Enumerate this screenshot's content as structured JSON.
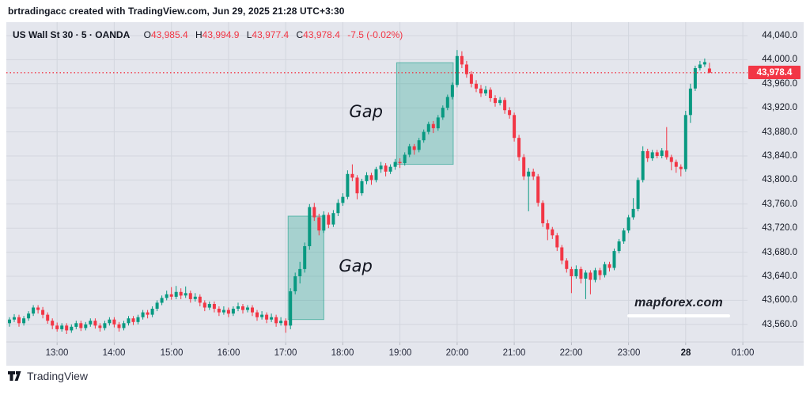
{
  "header": {
    "attribution": "brtradingacc created with TradingView.com, Jun 29, 2025 21:28 UTC+3:30"
  },
  "legend": {
    "title": "US Wall St 30 · 5 · OANDA",
    "o_label": "O",
    "o_value": "43,985.4",
    "h_label": "H",
    "h_value": "43,994.9",
    "l_label": "L",
    "l_value": "43,977.4",
    "c_label": "C",
    "c_value": "43,978.4",
    "change": "-7.5 (-0.02%)"
  },
  "price_axis": {
    "labels": [
      "44,040.0",
      "44,000.0",
      "43,960.0",
      "43,920.0",
      "43,880.0",
      "43,840.0",
      "43,800.0",
      "43,760.0",
      "43,720.0",
      "43,680.0",
      "43,640.0",
      "43,600.0",
      "43,560.0"
    ],
    "prices": [
      44040,
      44000,
      43960,
      43920,
      43880,
      43840,
      43800,
      43760,
      43720,
      43680,
      43640,
      43600,
      43560
    ],
    "last_price_label": "43,978.4",
    "last_price": 43978.4
  },
  "time_axis": {
    "ticks": [
      {
        "label": "13:00",
        "index": 10,
        "bold": false
      },
      {
        "label": "14:00",
        "index": 22,
        "bold": false
      },
      {
        "label": "15:00",
        "index": 34,
        "bold": false
      },
      {
        "label": "16:00",
        "index": 46,
        "bold": false
      },
      {
        "label": "17:00",
        "index": 58,
        "bold": false
      },
      {
        "label": "18:00",
        "index": 70,
        "bold": false
      },
      {
        "label": "19:00",
        "index": 82,
        "bold": false
      },
      {
        "label": "20:00",
        "index": 94,
        "bold": false
      },
      {
        "label": "21:00",
        "index": 106,
        "bold": false
      },
      {
        "label": "22:00",
        "index": 118,
        "bold": false
      },
      {
        "label": "23:00",
        "index": 130,
        "bold": false
      },
      {
        "label": "28",
        "index": 142,
        "bold": true
      },
      {
        "label": "01:00",
        "index": 154,
        "bold": false
      }
    ]
  },
  "annotations": {
    "gap_boxes": [
      {
        "label": "Gap",
        "start_index": 58.5,
        "end_index": 66,
        "price_top": 43740,
        "price_bottom": 43568,
        "label_side": "right"
      },
      {
        "label": "Gap",
        "start_index": 81.3,
        "end_index": 93.2,
        "price_top": 43995,
        "price_bottom": 43826,
        "label_side": "left"
      }
    ],
    "watermark": "mapforex.com"
  },
  "footer": {
    "brand": "TradingView"
  },
  "colors": {
    "up": "#089981",
    "down": "#f23645",
    "pane_bg": "#e4e6ed",
    "grid": "#d3d6de",
    "last_price_line": "#f23645",
    "badge_bg": "#f23645",
    "gap_fill": "rgba(8,153,129,0.28)",
    "gap_border": "rgba(8,153,129,0.55)",
    "text": "#131722"
  },
  "chart_data": {
    "type": "candlestick",
    "title": "US Wall St 30",
    "interval": "5 minute",
    "exchange": "OANDA",
    "start_time": "12:10",
    "interval_min": 5,
    "ylim": [
      43540,
      44060
    ],
    "grid": true,
    "last": {
      "open": 43985.4,
      "high": 43994.9,
      "low": 43977.4,
      "close": 43978.4,
      "change": "-7.5 (-0.02%)"
    },
    "candles": [
      [
        43562,
        43572,
        43556,
        43568
      ],
      [
        43568,
        43577,
        43564,
        43572
      ],
      [
        43572,
        43576,
        43556,
        43562
      ],
      [
        43562,
        43574,
        43558,
        43570
      ],
      [
        43570,
        43582,
        43566,
        43578
      ],
      [
        43578,
        43592,
        43574,
        43588
      ],
      [
        43588,
        43592,
        43578,
        43584
      ],
      [
        43584,
        43589,
        43570,
        43576
      ],
      [
        43576,
        43580,
        43561,
        43566
      ],
      [
        43566,
        43570,
        43552,
        43558
      ],
      [
        43558,
        43563,
        43548,
        43552
      ],
      [
        43552,
        43562,
        43548,
        43558
      ],
      [
        43558,
        43562,
        43544,
        43550
      ],
      [
        43550,
        43560,
        43546,
        43556
      ],
      [
        43556,
        43566,
        43552,
        43562
      ],
      [
        43562,
        43566,
        43549,
        43554
      ],
      [
        43554,
        43564,
        43550,
        43560
      ],
      [
        43560,
        43570,
        43556,
        43566
      ],
      [
        43566,
        43570,
        43553,
        43558
      ],
      [
        43558,
        43562,
        43548,
        43554
      ],
      [
        43554,
        43566,
        43550,
        43562
      ],
      [
        43562,
        43572,
        43558,
        43568
      ],
      [
        43568,
        43572,
        43555,
        43560
      ],
      [
        43560,
        43564,
        43548,
        43554
      ],
      [
        43554,
        43566,
        43550,
        43562
      ],
      [
        43562,
        43574,
        43558,
        43570
      ],
      [
        43570,
        43574,
        43559,
        43564
      ],
      [
        43564,
        43576,
        43560,
        43572
      ],
      [
        43572,
        43584,
        43568,
        43580
      ],
      [
        43580,
        43584,
        43570,
        43576
      ],
      [
        43576,
        43590,
        43572,
        43586
      ],
      [
        43586,
        43600,
        43582,
        43596
      ],
      [
        43596,
        43608,
        43592,
        43604
      ],
      [
        43604,
        43616,
        43600,
        43610
      ],
      [
        43610,
        43622,
        43601,
        43606
      ],
      [
        43606,
        43624,
        43602,
        43614
      ],
      [
        43614,
        43620,
        43602,
        43608
      ],
      [
        43608,
        43623,
        43604,
        43612
      ],
      [
        43612,
        43616,
        43596,
        43602
      ],
      [
        43602,
        43612,
        43598,
        43606
      ],
      [
        43606,
        43610,
        43590,
        43596
      ],
      [
        43596,
        43600,
        43582,
        43588
      ],
      [
        43588,
        43598,
        43584,
        43594
      ],
      [
        43594,
        43598,
        43580,
        43586
      ],
      [
        43586,
        43590,
        43574,
        43580
      ],
      [
        43580,
        43590,
        43576,
        43584
      ],
      [
        43584,
        43588,
        43572,
        43578
      ],
      [
        43578,
        43590,
        43574,
        43586
      ],
      [
        43586,
        43596,
        43582,
        43590
      ],
      [
        43590,
        43594,
        43578,
        43584
      ],
      [
        43584,
        43592,
        43580,
        43588
      ],
      [
        43588,
        43592,
        43574,
        43580
      ],
      [
        43580,
        43584,
        43566,
        43572
      ],
      [
        43572,
        43582,
        43568,
        43576
      ],
      [
        43576,
        43580,
        43562,
        43568
      ],
      [
        43568,
        43578,
        43564,
        43572
      ],
      [
        43572,
        43576,
        43556,
        43562
      ],
      [
        43562,
        43572,
        43558,
        43566
      ],
      [
        43566,
        43570,
        43546,
        43558
      ],
      [
        43558,
        43620,
        43552,
        43615
      ],
      [
        43615,
        43646,
        43610,
        43640
      ],
      [
        43640,
        43664,
        43628,
        43652
      ],
      [
        43652,
        43696,
        43646,
        43690
      ],
      [
        43690,
        43760,
        43684,
        43755
      ],
      [
        43755,
        43762,
        43732,
        43738
      ],
      [
        43738,
        43744,
        43708,
        43716
      ],
      [
        43716,
        43748,
        43712,
        43742
      ],
      [
        43742,
        43746,
        43720,
        43726
      ],
      [
        43726,
        43750,
        43722,
        43745
      ],
      [
        43745,
        43768,
        43740,
        43762
      ],
      [
        43762,
        43778,
        43757,
        43772
      ],
      [
        43772,
        43816,
        43768,
        43810
      ],
      [
        43810,
        43826,
        43798,
        43804
      ],
      [
        43804,
        43808,
        43768,
        43778
      ],
      [
        43778,
        43802,
        43774,
        43798
      ],
      [
        43798,
        43813,
        43793,
        43808
      ],
      [
        43808,
        43812,
        43792,
        43800
      ],
      [
        43800,
        43822,
        43796,
        43818
      ],
      [
        43818,
        43830,
        43812,
        43824
      ],
      [
        43824,
        43828,
        43806,
        43814
      ],
      [
        43814,
        43826,
        43810,
        43822
      ],
      [
        43822,
        43835,
        43817,
        43830
      ],
      [
        43830,
        43836,
        43820,
        43828
      ],
      [
        43828,
        43846,
        43824,
        43842
      ],
      [
        43842,
        43860,
        43838,
        43856
      ],
      [
        43856,
        43860,
        43842,
        43850
      ],
      [
        43850,
        43870,
        43846,
        43866
      ],
      [
        43866,
        43884,
        43862,
        43880
      ],
      [
        43880,
        43897,
        43876,
        43893
      ],
      [
        43893,
        43898,
        43878,
        43886
      ],
      [
        43886,
        43908,
        43882,
        43904
      ],
      [
        43904,
        43924,
        43900,
        43920
      ],
      [
        43920,
        43942,
        43916,
        43938
      ],
      [
        43938,
        43962,
        43934,
        43958
      ],
      [
        43958,
        44016,
        43954,
        44006
      ],
      [
        44006,
        44014,
        43986,
        43992
      ],
      [
        43992,
        43998,
        43970,
        43976
      ],
      [
        43976,
        43981,
        43954,
        43960
      ],
      [
        43960,
        43966,
        43946,
        43952
      ],
      [
        43952,
        43958,
        43938,
        43944
      ],
      [
        43944,
        43956,
        43940,
        43950
      ],
      [
        43950,
        43954,
        43930,
        43936
      ],
      [
        43936,
        43941,
        43922,
        43928
      ],
      [
        43928,
        43938,
        43924,
        43933
      ],
      [
        43933,
        43937,
        43910,
        43916
      ],
      [
        43916,
        43921,
        43902,
        43908
      ],
      [
        43908,
        43912,
        43864,
        43870
      ],
      [
        43870,
        43875,
        43832,
        43838
      ],
      [
        43838,
        43843,
        43800,
        43806
      ],
      [
        43806,
        43820,
        43748,
        43814
      ],
      [
        43814,
        43819,
        43800,
        43806
      ],
      [
        43806,
        43810,
        43756,
        43762
      ],
      [
        43762,
        43766,
        43722,
        43728
      ],
      [
        43728,
        43734,
        43700,
        43718
      ],
      [
        43718,
        43722,
        43702,
        43708
      ],
      [
        43708,
        43712,
        43682,
        43688
      ],
      [
        43688,
        43692,
        43660,
        43666
      ],
      [
        43666,
        43670,
        43646,
        43652
      ],
      [
        43652,
        43656,
        43612,
        43640
      ],
      [
        43640,
        43658,
        43636,
        43652
      ],
      [
        43652,
        43656,
        43628,
        43636
      ],
      [
        43636,
        43650,
        43602,
        43646
      ],
      [
        43646,
        43650,
        43610,
        43634
      ],
      [
        43634,
        43654,
        43630,
        43650
      ],
      [
        43650,
        43654,
        43634,
        43642
      ],
      [
        43642,
        43664,
        43638,
        43660
      ],
      [
        43660,
        43664,
        43648,
        43654
      ],
      [
        43654,
        43686,
        43650,
        43682
      ],
      [
        43682,
        43702,
        43678,
        43698
      ],
      [
        43698,
        43720,
        43694,
        43716
      ],
      [
        43716,
        43742,
        43712,
        43738
      ],
      [
        43738,
        43770,
        43734,
        43752
      ],
      [
        43752,
        43804,
        43748,
        43800
      ],
      [
        43800,
        43856,
        43796,
        43848
      ],
      [
        43848,
        43852,
        43830,
        43836
      ],
      [
        43836,
        43850,
        43832,
        43846
      ],
      [
        43846,
        43850,
        43836,
        43840
      ],
      [
        43840,
        43853,
        43836,
        43849
      ],
      [
        43849,
        43888,
        43834,
        43838
      ],
      [
        43838,
        43842,
        43816,
        43830
      ],
      [
        43830,
        43834,
        43812,
        43822
      ],
      [
        43822,
        43826,
        43806,
        43818
      ],
      [
        43818,
        43915,
        43814,
        43908
      ],
      [
        43908,
        43960,
        43895,
        43952
      ],
      [
        43952,
        43990,
        43948,
        43986
      ],
      [
        43986,
        43998,
        43982,
        43992
      ],
      [
        43992,
        44002,
        43988,
        43996
      ],
      [
        43985.4,
        43994.9,
        43977.4,
        43978.4
      ]
    ]
  }
}
